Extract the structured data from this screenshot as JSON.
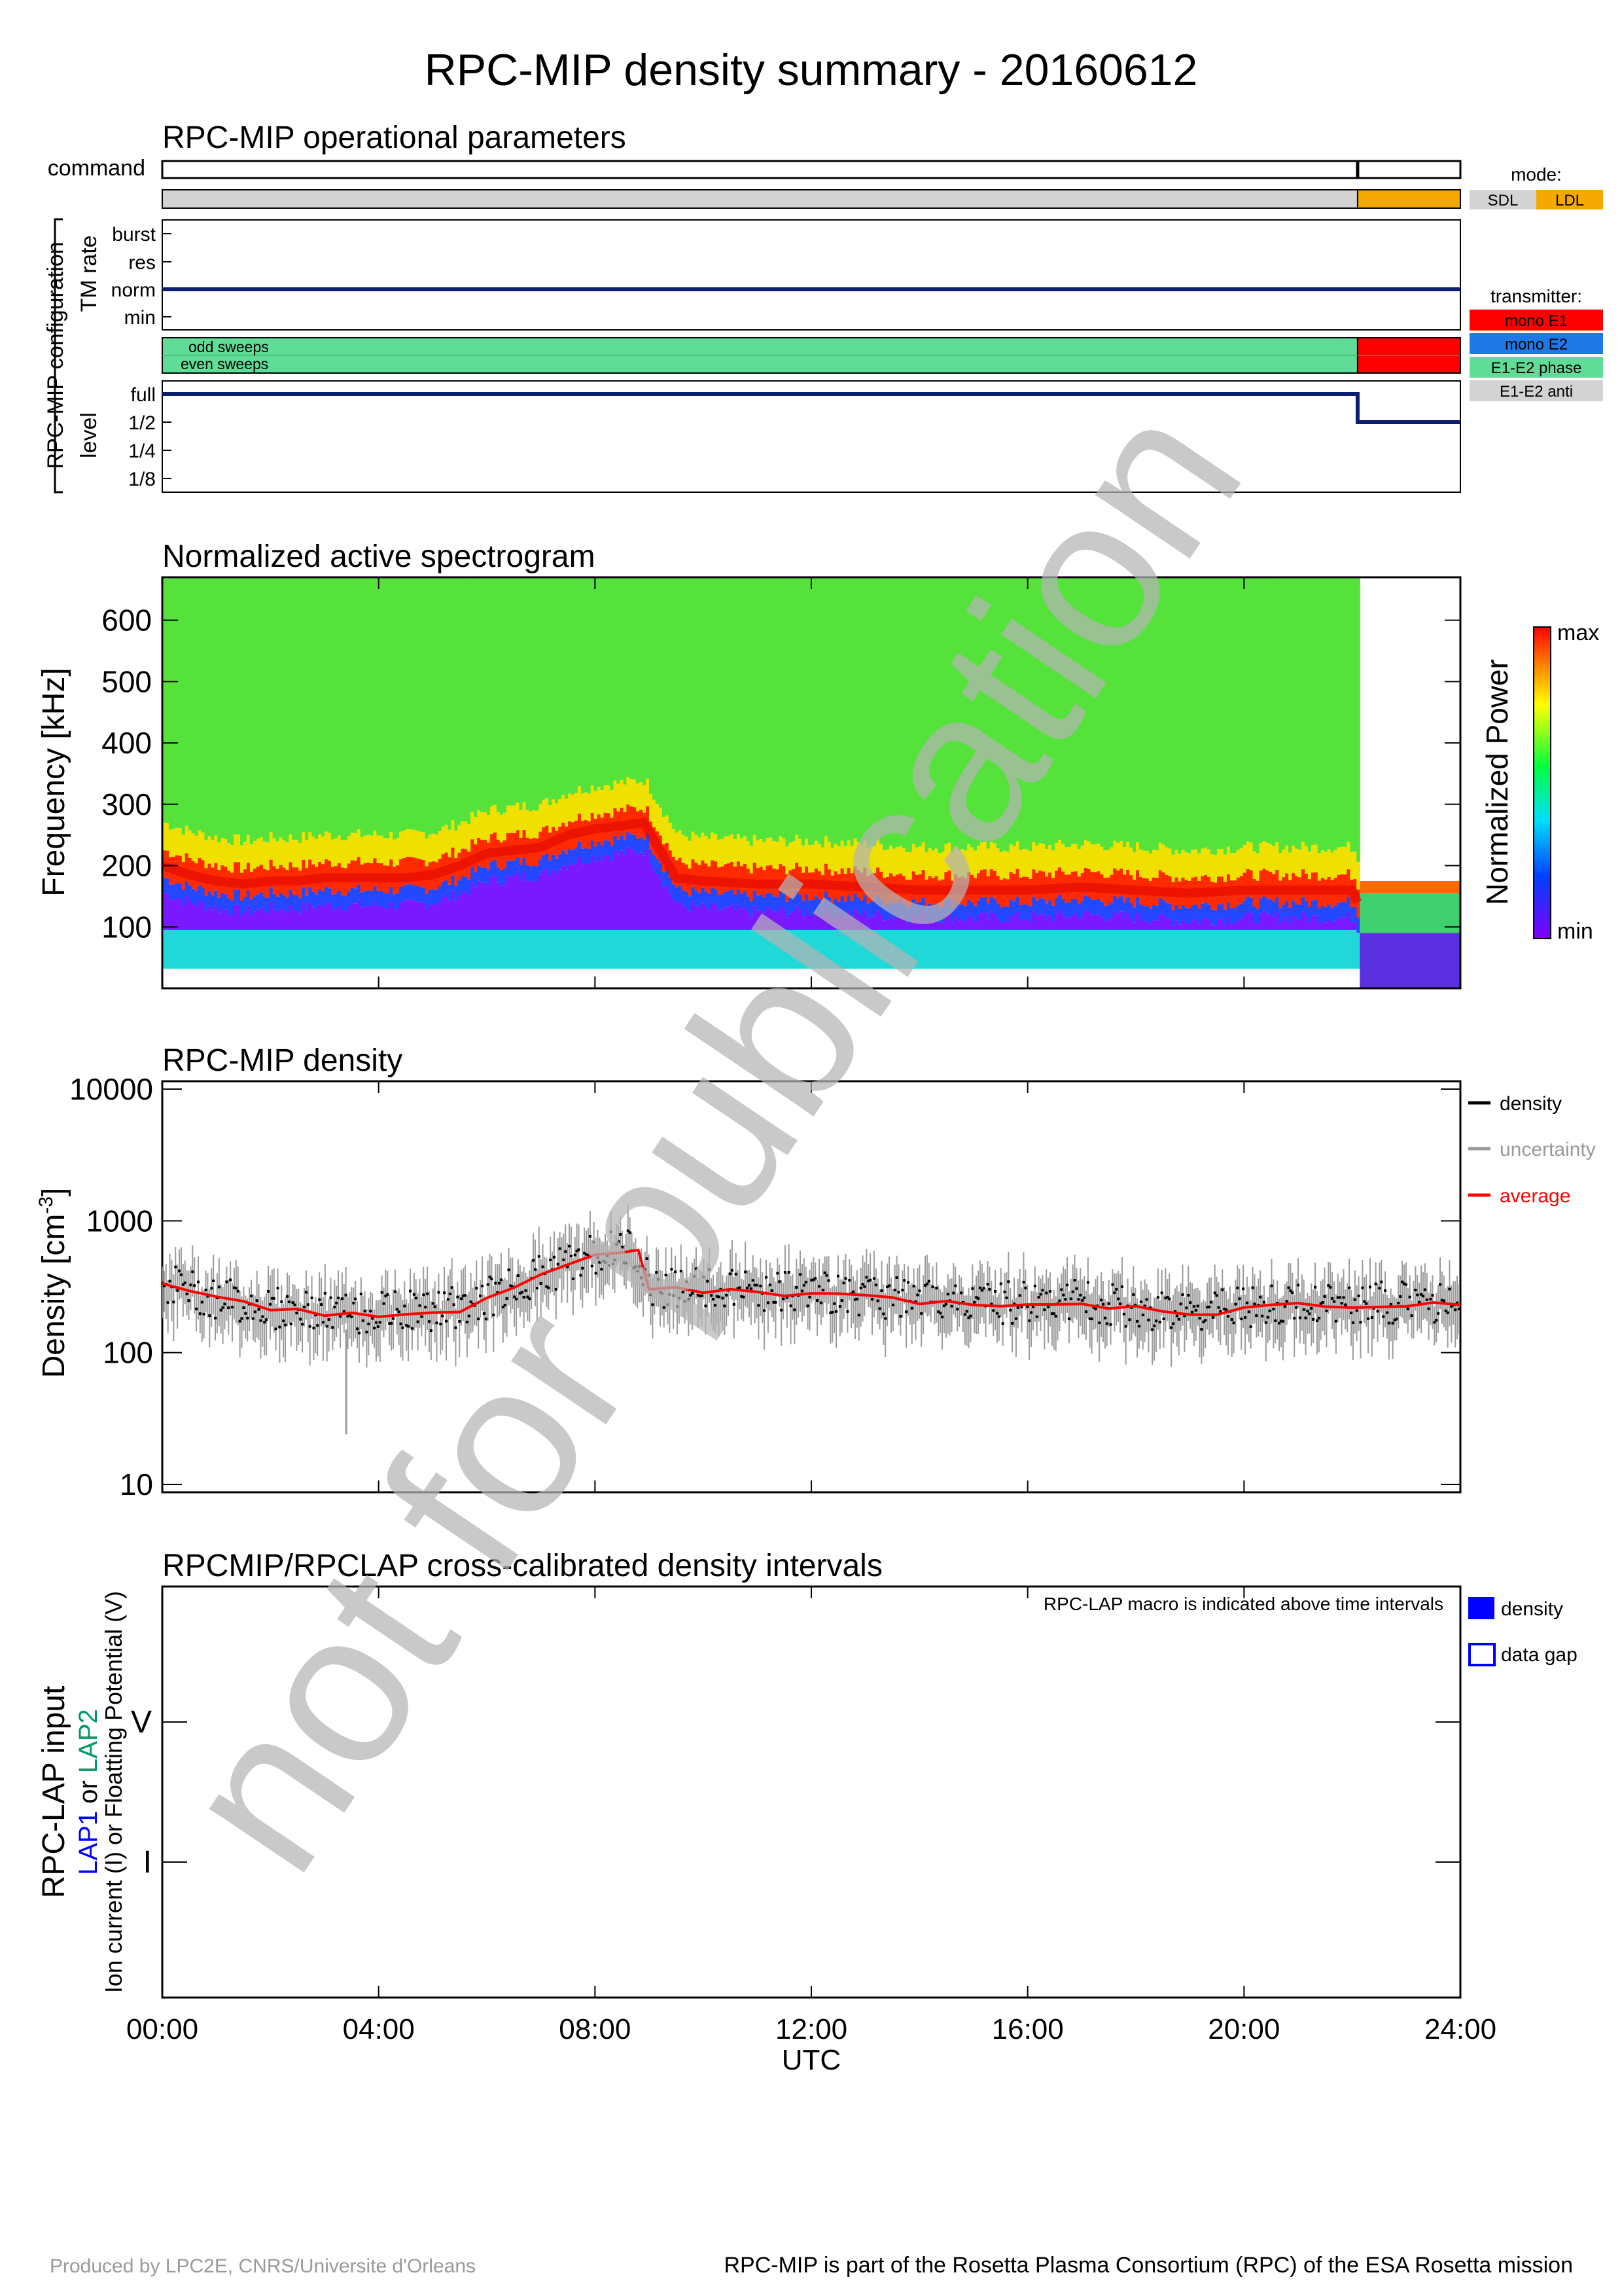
{
  "page": {
    "title": "RPC-MIP density summary - 20160612",
    "footer_left": "Produced by LPC2E, CNRS/Universite d'Orleans",
    "footer_right": "RPC-MIP is part of the Rosetta Plasma Consortium (RPC) of the ESA Rosetta mission",
    "watermark": "not for publication"
  },
  "ops": {
    "title": "RPC-MIP operational parameters",
    "command_label": "command",
    "config_label": "RPC-MIP configuration",
    "tm_rate_label": "TM rate",
    "tm_rate_levels": [
      "burst",
      "res",
      "norm",
      "min"
    ],
    "tm_rate_value": "norm",
    "level_label": "level",
    "level_levels": [
      "full",
      "1/2",
      "1/4",
      "1/8"
    ],
    "level_segments": [
      {
        "start_hours": 0,
        "end_hours": 22.1,
        "level": "full"
      },
      {
        "start_hours": 22.1,
        "end_hours": 24,
        "level": "1/2"
      }
    ],
    "mode_segments": [
      {
        "start_hours": 0,
        "end_hours": 22.1,
        "mode": "SDL"
      },
      {
        "start_hours": 22.1,
        "end_hours": 24,
        "mode": "LDL"
      }
    ],
    "command_marks_hours": [
      22.1
    ],
    "sweeps": {
      "odd_label": "odd sweeps",
      "even_label": "even sweeps"
    },
    "transmitter_segments": [
      {
        "start_hours": 0,
        "end_hours": 22.1,
        "transmitter": "E1-E2 phase"
      },
      {
        "start_hours": 22.1,
        "end_hours": 24,
        "transmitter": "mono E1"
      }
    ],
    "mode_legend": {
      "title": "mode:",
      "items": [
        {
          "label": "SDL",
          "color": "#d3d3d3"
        },
        {
          "label": "LDL",
          "color": "#f5a800"
        }
      ]
    },
    "transmitter_legend": {
      "title": "transmitter:",
      "items": [
        {
          "label": "mono E1",
          "color": "#ff0000"
        },
        {
          "label": "mono E2",
          "color": "#1e78e6"
        },
        {
          "label": "E1-E2 phase",
          "color": "#5fdc96"
        },
        {
          "label": "E1-E2 anti",
          "color": "#d3d3d3"
        }
      ]
    }
  },
  "spectrogram": {
    "title": "Normalized active spectrogram",
    "ylabel": "Frequency [kHz]",
    "yticks": [
      "100",
      "200",
      "300",
      "400",
      "500",
      "600"
    ],
    "colorbar_label": "Normalized Power",
    "colorbar_max": "max",
    "colorbar_min": "min"
  },
  "density": {
    "title": "RPC-MIP density",
    "ylabel": "Density [cm",
    "ylabel_sup": "-3",
    "ylabel_end": "]",
    "yticks": [
      "10",
      "100",
      "1000",
      "10000"
    ],
    "legend": [
      {
        "label": "density",
        "color": "#000000"
      },
      {
        "label": "uncertainty",
        "color": "#999999"
      },
      {
        "label": "average",
        "color": "#ff0000"
      }
    ]
  },
  "lap": {
    "title": "RPCMIP/RPCLAP cross-calibrated density intervals",
    "note": "RPC-LAP macro is indicated above time intervals",
    "ylabel_main": "RPC-LAP input",
    "ylabel_lap1": "LAP1",
    "ylabel_or": " or ",
    "ylabel_lap2": "LAP2",
    "ylabel_sub": "Ion current (I) or Floatting Potential (V)",
    "lap1_color": "#0000ff",
    "lap2_color": "#009a66",
    "yticks": [
      "I",
      "V"
    ],
    "legend": [
      {
        "label": "density",
        "color": "#0000ff",
        "style": "filled"
      },
      {
        "label": "data gap",
        "color": "#0000ff",
        "style": "outline"
      }
    ]
  },
  "time_axis": {
    "ticks": [
      "00:00",
      "04:00",
      "08:00",
      "12:00",
      "16:00",
      "20:00",
      "24:00"
    ],
    "label": "UTC"
  },
  "chart_data": [
    {
      "type": "heatmap",
      "title": "Normalized active spectrogram",
      "ylabel": "Frequency [kHz]",
      "xlim_hours": [
        0,
        24
      ],
      "ylim": [
        0,
        670
      ],
      "colorbar": "Normalized Power",
      "plasma_line_khz": {
        "x_hours": [
          0,
          0.5,
          1,
          1.5,
          2,
          2.5,
          3,
          3.5,
          4,
          4.5,
          5,
          5.5,
          6,
          6.5,
          7,
          7.5,
          8,
          8.5,
          8.9,
          9.5,
          10,
          11,
          12,
          13,
          14,
          15,
          16,
          17,
          18,
          19,
          20,
          21,
          22,
          22.1,
          23,
          24
        ],
        "y": [
          200,
          185,
          175,
          170,
          175,
          175,
          180,
          180,
          180,
          180,
          185,
          200,
          220,
          225,
          230,
          250,
          260,
          265,
          270,
          180,
          175,
          170,
          170,
          165,
          160,
          160,
          160,
          165,
          160,
          155,
          160,
          160,
          160,
          140,
          140,
          140
        ]
      },
      "data_gap_hours": [
        22.1,
        24
      ]
    },
    {
      "type": "line",
      "title": "RPC-MIP density",
      "ylabel": "Density [cm-3]",
      "yscale": "log",
      "ylim": [
        10,
        10000
      ],
      "xlim_hours": [
        0,
        24
      ],
      "x_hours": [
        0,
        0.5,
        1,
        1.5,
        2,
        2.5,
        3,
        3.5,
        4,
        4.5,
        5,
        5.5,
        6,
        6.5,
        7,
        7.5,
        8,
        8.5,
        8.8,
        9,
        9.5,
        10,
        10.5,
        11,
        11.5,
        12,
        12.5,
        13,
        13.5,
        14,
        14.5,
        15,
        15.5,
        16,
        16.5,
        17,
        17.5,
        18,
        18.5,
        19,
        19.5,
        20,
        20.5,
        21,
        21.5,
        22,
        22.5,
        23,
        23.5,
        24
      ],
      "series": [
        {
          "name": "density",
          "values": [
            350,
            300,
            260,
            240,
            220,
            210,
            200,
            200,
            200,
            210,
            210,
            220,
            260,
            320,
            380,
            480,
            550,
            600,
            600,
            320,
            310,
            300,
            300,
            300,
            290,
            290,
            280,
            270,
            260,
            250,
            245,
            245,
            240,
            240,
            250,
            250,
            230,
            220,
            210,
            200,
            210,
            220,
            230,
            230,
            240,
            230,
            240,
            240,
            240,
            230
          ]
        },
        {
          "name": "average",
          "values": [
            340,
            290,
            255,
            235,
            215,
            205,
            195,
            195,
            195,
            205,
            205,
            215,
            255,
            310,
            370,
            470,
            540,
            580,
            580,
            310,
            305,
            295,
            295,
            295,
            285,
            285,
            275,
            265,
            255,
            245,
            240,
            240,
            235,
            235,
            245,
            245,
            225,
            215,
            205,
            195,
            205,
            215,
            225,
            225,
            235,
            225,
            235,
            235,
            235,
            225
          ]
        }
      ],
      "uncertainty_min_hours": 3.4,
      "uncertainty_min_value": 24
    }
  ]
}
